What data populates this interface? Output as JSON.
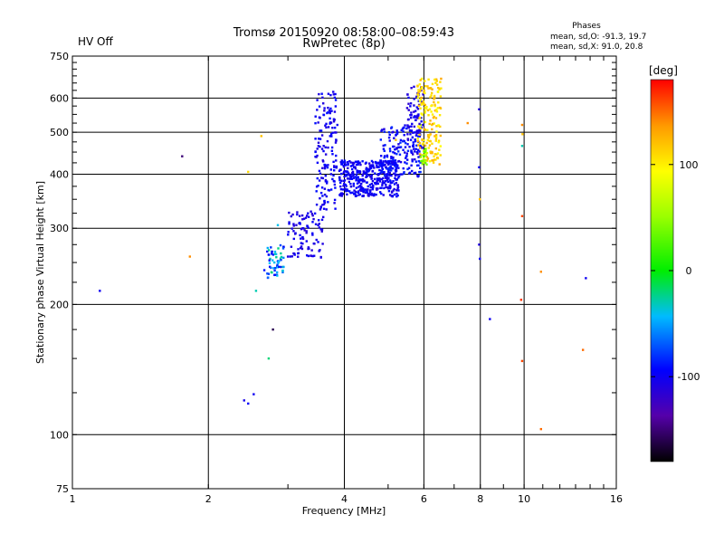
{
  "status_label": "HV Off",
  "status_color": "#cc0000",
  "chart_data": {
    "type": "scatter",
    "title": "Tromsø 20150920 08:58:00–08:59:43",
    "subtitle": "RwPretec (8p)",
    "xlabel": "Frequency [MHz]",
    "ylabel": "Stationary phase Virtual Height [km]",
    "x_scale": "log",
    "y_scale": "log",
    "xlim": [
      1,
      16
    ],
    "ylim": [
      75,
      750
    ],
    "x_ticks": [
      1,
      2,
      4,
      6,
      8,
      10,
      16
    ],
    "x_tick_labels": [
      "1",
      "2",
      "4",
      "6",
      "8",
      "10",
      "16"
    ],
    "y_ticks": [
      75,
      100,
      200,
      300,
      400,
      500,
      600,
      750
    ],
    "y_tick_labels": [
      "75",
      "100",
      "200",
      "300",
      "400",
      "500",
      "600",
      "750"
    ],
    "grid": true,
    "stats": {
      "heading": "Phases",
      "line1": "mean, sd,O: -91.3, 19.7",
      "line2": "mean, sd,X:  91.0, 20.8"
    },
    "colorbar": {
      "label": "[deg]",
      "min": -180,
      "max": 180,
      "ticks": [
        100,
        0,
        -100
      ],
      "tick_labels": [
        "100",
        "0",
        "-100"
      ]
    },
    "points": [
      {
        "x": 1.15,
        "y": 215,
        "p": -100
      },
      {
        "x": 1.75,
        "y": 440,
        "p": -150
      },
      {
        "x": 1.82,
        "y": 258,
        "p": 140
      },
      {
        "x": 2.45,
        "y": 405,
        "p": 110
      },
      {
        "x": 2.62,
        "y": 490,
        "p": 120
      },
      {
        "x": 2.55,
        "y": 215,
        "p": -30
      },
      {
        "x": 2.78,
        "y": 175,
        "p": -160
      },
      {
        "x": 2.85,
        "y": 305,
        "p": -40
      },
      {
        "x": 2.72,
        "y": 150,
        "p": -20
      },
      {
        "x": 2.4,
        "y": 120,
        "p": -105
      },
      {
        "x": 2.45,
        "y": 118,
        "p": -95
      },
      {
        "x": 2.52,
        "y": 124,
        "p": -100
      },
      {
        "x": 2.66,
        "y": 240,
        "p": -90
      },
      {
        "x": 2.7,
        "y": 265,
        "p": -95
      },
      {
        "x": 2.74,
        "y": 255,
        "p": -30
      },
      {
        "x": 2.8,
        "y": 250,
        "p": -40
      },
      {
        "x": 2.84,
        "y": 245,
        "p": -100
      },
      {
        "x": 3.0,
        "y": 258,
        "p": -110
      },
      {
        "x": 3.1,
        "y": 262,
        "p": -100
      },
      {
        "x": 3.2,
        "y": 270,
        "p": -105
      },
      {
        "x": 3.3,
        "y": 280,
        "p": -100
      },
      {
        "x": 3.4,
        "y": 292,
        "p": -95
      },
      {
        "x": 3.5,
        "y": 305,
        "p": -100
      },
      {
        "x": 3.55,
        "y": 335,
        "p": -100
      },
      {
        "x": 3.62,
        "y": 370,
        "p": -105
      },
      {
        "x": 3.68,
        "y": 420,
        "p": -100
      },
      {
        "x": 3.72,
        "y": 490,
        "p": -95
      },
      {
        "x": 3.75,
        "y": 560,
        "p": -100
      },
      {
        "x": 3.78,
        "y": 620,
        "p": -105
      },
      {
        "x": 3.86,
        "y": 520,
        "p": -100
      },
      {
        "x": 3.95,
        "y": 430,
        "p": -100
      },
      {
        "x": 4.05,
        "y": 405,
        "p": -95
      },
      {
        "x": 4.2,
        "y": 392,
        "p": -100
      },
      {
        "x": 4.4,
        "y": 385,
        "p": -100
      },
      {
        "x": 4.6,
        "y": 380,
        "p": -105
      },
      {
        "x": 4.8,
        "y": 385,
        "p": -100
      },
      {
        "x": 5.0,
        "y": 400,
        "p": -100
      },
      {
        "x": 5.2,
        "y": 425,
        "p": -95
      },
      {
        "x": 5.4,
        "y": 455,
        "p": -90
      },
      {
        "x": 5.6,
        "y": 495,
        "p": -100
      },
      {
        "x": 5.75,
        "y": 560,
        "p": -100
      },
      {
        "x": 5.85,
        "y": 610,
        "p": -100
      },
      {
        "x": 6.05,
        "y": 430,
        "p": 110
      },
      {
        "x": 6.15,
        "y": 460,
        "p": 100
      },
      {
        "x": 6.25,
        "y": 520,
        "p": 110
      },
      {
        "x": 6.35,
        "y": 575,
        "p": 100
      },
      {
        "x": 6.45,
        "y": 620,
        "p": 105
      },
      {
        "x": 6.55,
        "y": 665,
        "p": 130
      },
      {
        "x": 5.9,
        "y": 520,
        "p": 60
      },
      {
        "x": 5.2,
        "y": 480,
        "p": 120
      },
      {
        "x": 7.5,
        "y": 525,
        "p": 140
      },
      {
        "x": 7.95,
        "y": 565,
        "p": -110
      },
      {
        "x": 7.95,
        "y": 415,
        "p": -100
      },
      {
        "x": 7.98,
        "y": 350,
        "p": 120
      },
      {
        "x": 7.95,
        "y": 275,
        "p": -110
      },
      {
        "x": 7.98,
        "y": 255,
        "p": -100
      },
      {
        "x": 8.4,
        "y": 185,
        "p": -100
      },
      {
        "x": 9.9,
        "y": 520,
        "p": 140
      },
      {
        "x": 9.92,
        "y": 495,
        "p": 120
      },
      {
        "x": 9.9,
        "y": 465,
        "p": -30
      },
      {
        "x": 9.9,
        "y": 320,
        "p": 160
      },
      {
        "x": 9.85,
        "y": 205,
        "p": 165
      },
      {
        "x": 9.9,
        "y": 148,
        "p": 160
      },
      {
        "x": 10.9,
        "y": 238,
        "p": 140
      },
      {
        "x": 10.9,
        "y": 103,
        "p": 150
      },
      {
        "x": 13.7,
        "y": 230,
        "p": -100
      },
      {
        "x": 13.5,
        "y": 157,
        "p": 150
      }
    ],
    "clusters": [
      {
        "x": [
          2.7,
          2.95
        ],
        "y": [
          230,
          275
        ],
        "p": -60,
        "n": 55,
        "spread": 40
      },
      {
        "x": [
          3.0,
          3.6
        ],
        "y": [
          255,
          330
        ],
        "p": -105,
        "n": 90,
        "spread": 10
      },
      {
        "x": [
          3.45,
          3.85
        ],
        "y": [
          330,
          630
        ],
        "p": -100,
        "n": 140,
        "spread": 12
      },
      {
        "x": [
          3.9,
          5.3
        ],
        "y": [
          355,
          430
        ],
        "p": -100,
        "n": 380,
        "spread": 12
      },
      {
        "x": [
          4.8,
          5.9
        ],
        "y": [
          395,
          520
        ],
        "p": -95,
        "n": 160,
        "spread": 15
      },
      {
        "x": [
          5.5,
          6.0
        ],
        "y": [
          440,
          640
        ],
        "p": -105,
        "n": 80,
        "spread": 12
      },
      {
        "x": [
          5.8,
          6.55
        ],
        "y": [
          420,
          670
        ],
        "p": 110,
        "n": 170,
        "spread": 20
      },
      {
        "x": [
          5.9,
          6.1
        ],
        "y": [
          420,
          460
        ],
        "p": 50,
        "n": 25,
        "spread": 30
      }
    ]
  }
}
